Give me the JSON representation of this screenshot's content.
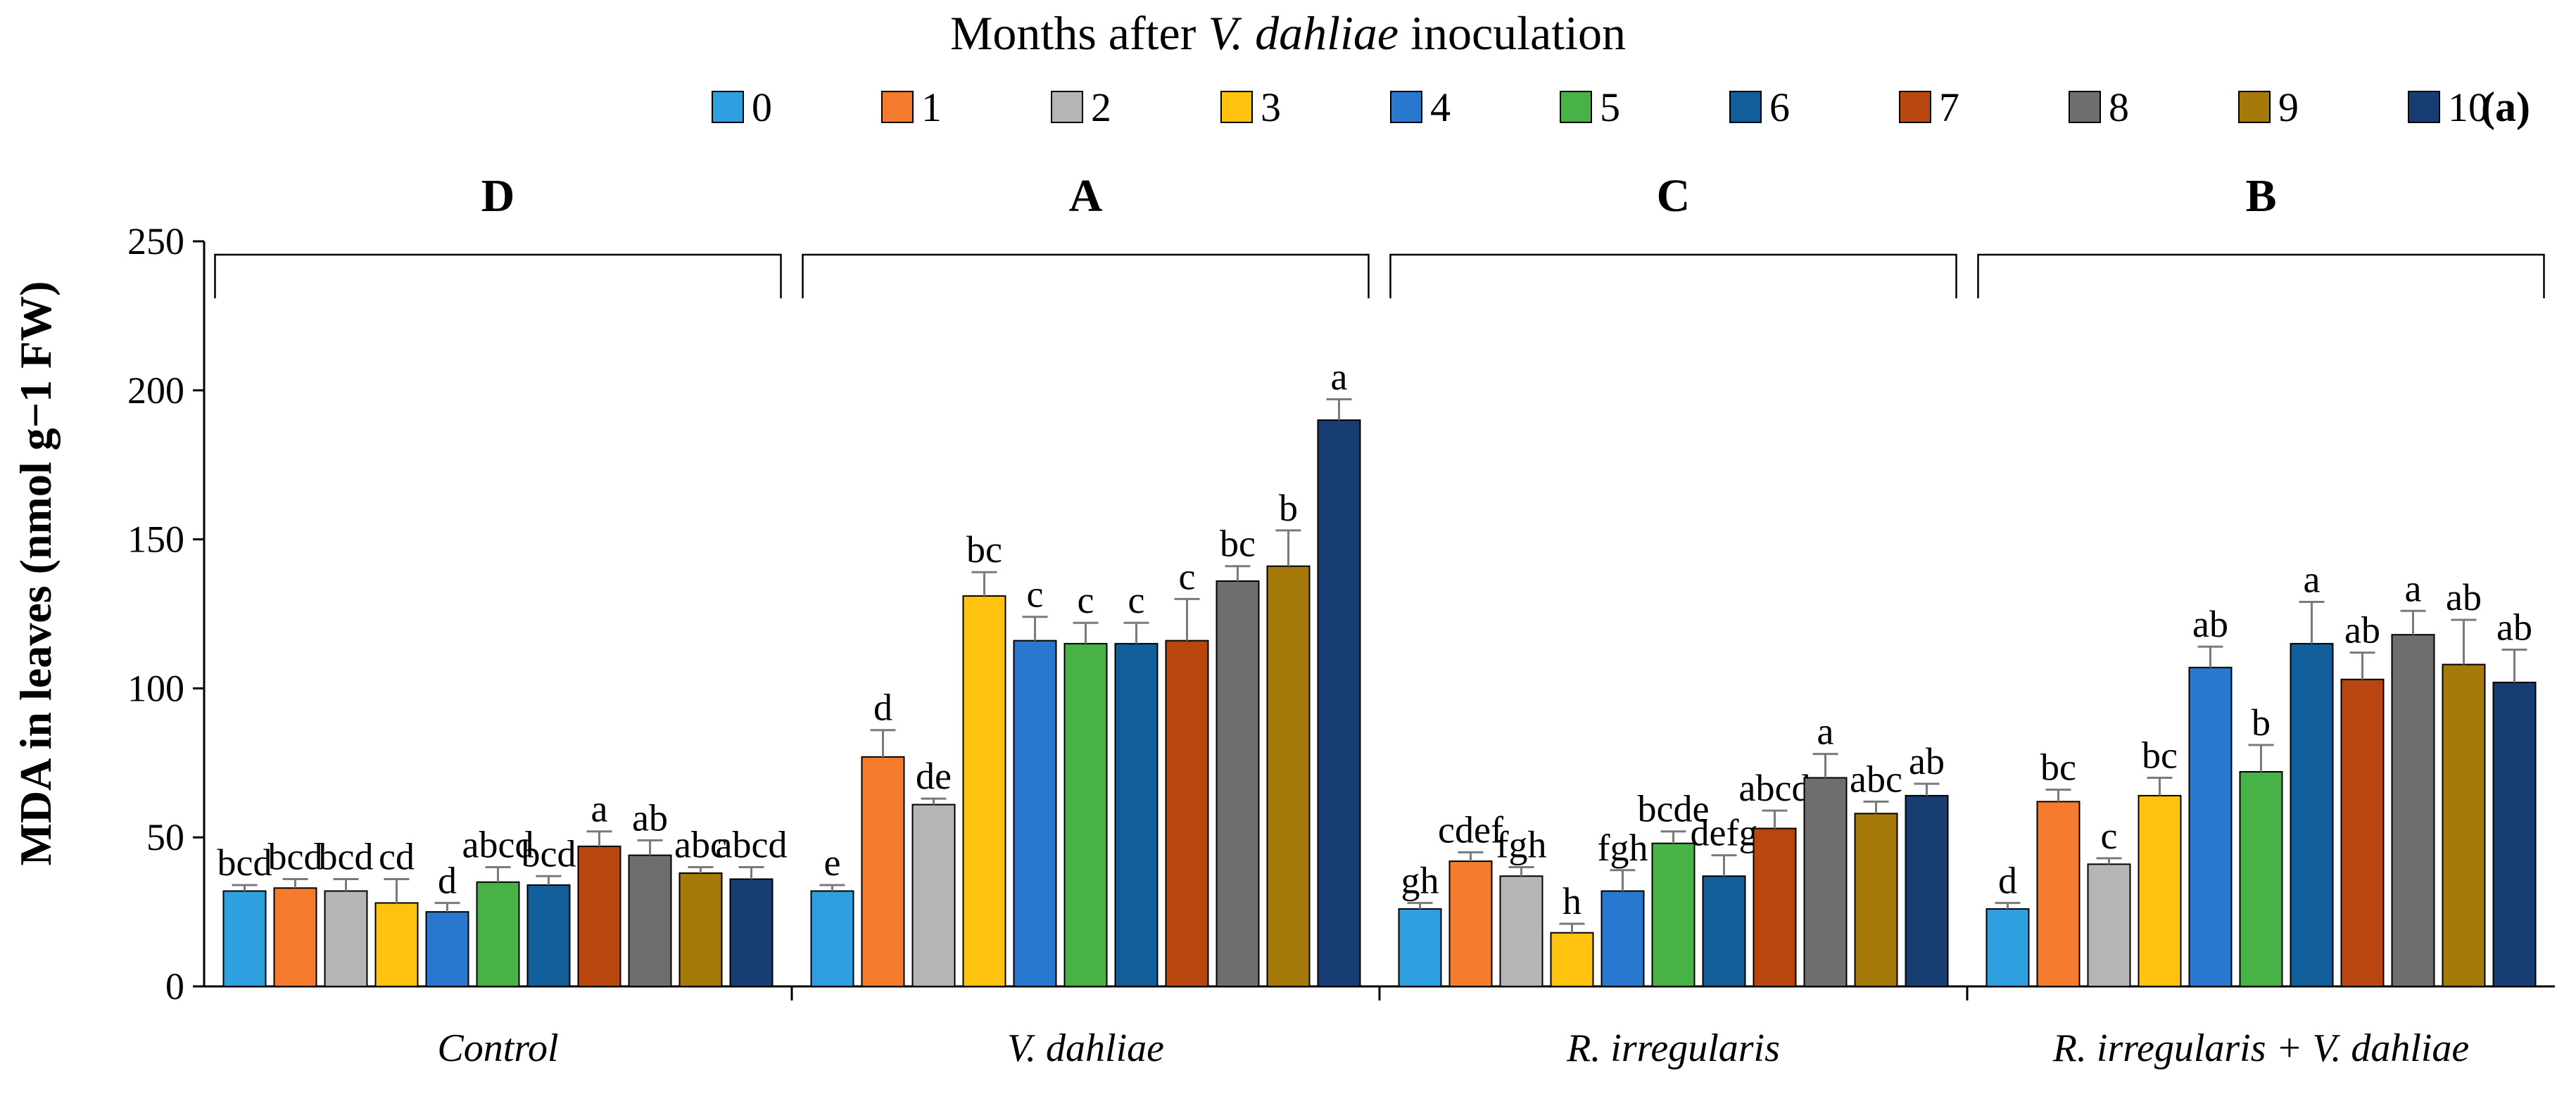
{
  "chart_data": {
    "type": "bar",
    "title": "Months after V. dahliae inoculation",
    "title_parts": {
      "prefix": "Months after ",
      "italic": "V. dahliae",
      "suffix": " inoculation"
    },
    "panel_label": "(a)",
    "ylabel": "MDA in leaves (nmol g−1 FW)",
    "xlabel": "",
    "ylim": [
      0,
      250
    ],
    "yticks": [
      0,
      50,
      100,
      150,
      200,
      250
    ],
    "ytick_labels": [
      "0",
      "50",
      "100",
      "150",
      "200",
      "250"
    ],
    "grid": false,
    "legend_position": "top-center",
    "legend_entries": [
      "0",
      "1",
      "2",
      "3",
      "4",
      "5",
      "6",
      "7",
      "8",
      "9",
      "10"
    ],
    "series_colors": [
      "#2E9FDF",
      "#F47A2E",
      "#B5B5B5",
      "#FFC20E",
      "#2878D0",
      "#48B247",
      "#115E9B",
      "#B9460F",
      "#6E6E6E",
      "#A67A0A",
      "#173D73"
    ],
    "groups": [
      {
        "label": "Control",
        "letter": "D",
        "values": [
          32,
          33,
          32,
          28,
          25,
          35,
          34,
          47,
          44,
          38,
          36
        ],
        "errors": [
          2,
          3,
          4,
          8,
          3,
          5,
          3,
          5,
          5,
          2,
          4
        ],
        "sig": [
          "bcd",
          "bcd",
          "bcd",
          "cd",
          "d",
          "abcd",
          "bcd",
          "a",
          "ab",
          "abc",
          "abcd"
        ]
      },
      {
        "label": "V. dahliae",
        "letter": "A",
        "values": [
          32,
          77,
          61,
          131,
          116,
          115,
          115,
          116,
          136,
          141,
          190
        ],
        "errors": [
          2,
          9,
          2,
          8,
          8,
          7,
          7,
          14,
          5,
          12,
          7
        ],
        "sig": [
          "e",
          "d",
          "de",
          "bc",
          "c",
          "c",
          "c",
          "c",
          "bc",
          "b",
          "a"
        ]
      },
      {
        "label": "R. irregularis",
        "letter": "C",
        "values": [
          26,
          42,
          37,
          18,
          32,
          48,
          37,
          53,
          70,
          58,
          64
        ],
        "errors": [
          2,
          3,
          3,
          3,
          7,
          4,
          7,
          6,
          8,
          4,
          4
        ],
        "sig": [
          "gh",
          "cdef",
          "fgh",
          "h",
          "fgh",
          "bcde",
          "defg",
          "abcd",
          "a",
          "abc",
          "ab"
        ]
      },
      {
        "label": "R. irregularis + V. dahliae",
        "letter": "B",
        "values": [
          26,
          62,
          41,
          64,
          107,
          72,
          115,
          103,
          118,
          108,
          102
        ],
        "errors": [
          2,
          4,
          2,
          6,
          7,
          9,
          14,
          9,
          8,
          15,
          11
        ],
        "sig": [
          "d",
          "bc",
          "c",
          "bc",
          "ab",
          "b",
          "a",
          "ab",
          "a",
          "ab",
          "ab"
        ]
      }
    ]
  }
}
